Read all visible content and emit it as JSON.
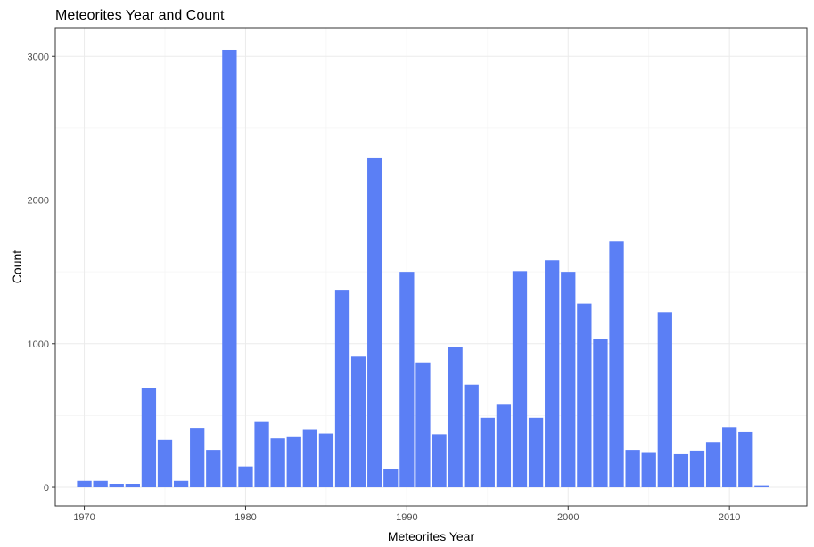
{
  "chart_data": {
    "type": "bar",
    "title": "Meteorites Year and Count",
    "xlabel": "Meteorites Year",
    "ylabel": "Count",
    "x": [
      1970,
      1971,
      1972,
      1973,
      1974,
      1975,
      1976,
      1977,
      1978,
      1979,
      1980,
      1981,
      1982,
      1983,
      1984,
      1985,
      1986,
      1987,
      1988,
      1989,
      1990,
      1991,
      1992,
      1993,
      1994,
      1995,
      1996,
      1997,
      1998,
      1999,
      2000,
      2001,
      2002,
      2003,
      2004,
      2005,
      2006,
      2007,
      2008,
      2009,
      2010,
      2011,
      2012
    ],
    "values": [
      45,
      45,
      25,
      25,
      690,
      330,
      45,
      415,
      260,
      3045,
      145,
      455,
      340,
      355,
      400,
      375,
      1370,
      910,
      2295,
      130,
      1500,
      870,
      370,
      975,
      715,
      485,
      575,
      1505,
      485,
      1580,
      1500,
      1280,
      1030,
      1710,
      260,
      245,
      1220,
      230,
      255,
      315,
      420,
      385,
      15
    ],
    "xlim": [
      1968.2,
      2014.8
    ],
    "ylim": [
      -130,
      3200
    ],
    "xticks": [
      1970,
      1980,
      1990,
      2000,
      2010
    ],
    "xtick_labels": [
      "1970",
      "1980",
      "1990",
      "2000",
      "2010"
    ],
    "yticks": [
      0,
      1000,
      2000,
      3000
    ],
    "ytick_labels": [
      "0",
      "1000",
      "2000",
      "3000"
    ],
    "bar_color": "#5B7FF5",
    "grid": true,
    "legend": "none"
  }
}
